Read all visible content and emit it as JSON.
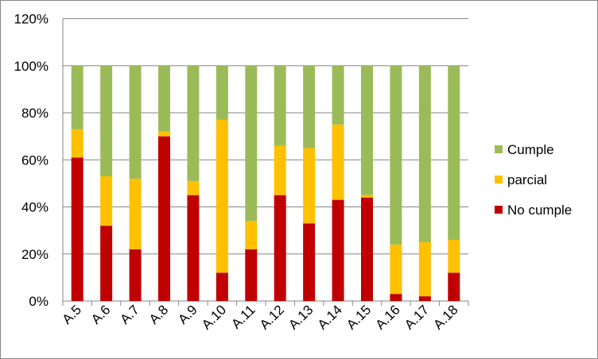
{
  "chart_data": {
    "type": "bar",
    "stacked": true,
    "categories": [
      "A.5",
      "A.6",
      "A.7",
      "A.8",
      "A.9",
      "A.10",
      "A.11",
      "A.12",
      "A.13",
      "A.14",
      "A.15",
      "A.16",
      "A.17",
      "A.18"
    ],
    "series": [
      {
        "name": "No cumple",
        "color": "#C00000",
        "values": [
          61,
          32,
          22,
          70,
          45,
          12,
          22,
          45,
          33,
          43,
          44,
          3,
          2,
          12
        ]
      },
      {
        "name": "parcial",
        "color": "#FFC000",
        "values": [
          12,
          21,
          30,
          2,
          6,
          65,
          12,
          21,
          32,
          32,
          1,
          21,
          23,
          14
        ]
      },
      {
        "name": "Cumple",
        "color": "#9BBB59",
        "values": [
          27,
          47,
          48,
          28,
          49,
          23,
          66,
          34,
          35,
          25,
          55,
          76,
          75,
          74
        ]
      }
    ],
    "y_ticks": [
      "0%",
      "20%",
      "40%",
      "60%",
      "80%",
      "100%",
      "120%"
    ],
    "ylim": [
      0,
      120
    ],
    "grid": true,
    "legend_position": "right",
    "legend_order": [
      "Cumple",
      "parcial",
      "No cumple"
    ],
    "title": "",
    "xlabel": "",
    "ylabel": ""
  }
}
